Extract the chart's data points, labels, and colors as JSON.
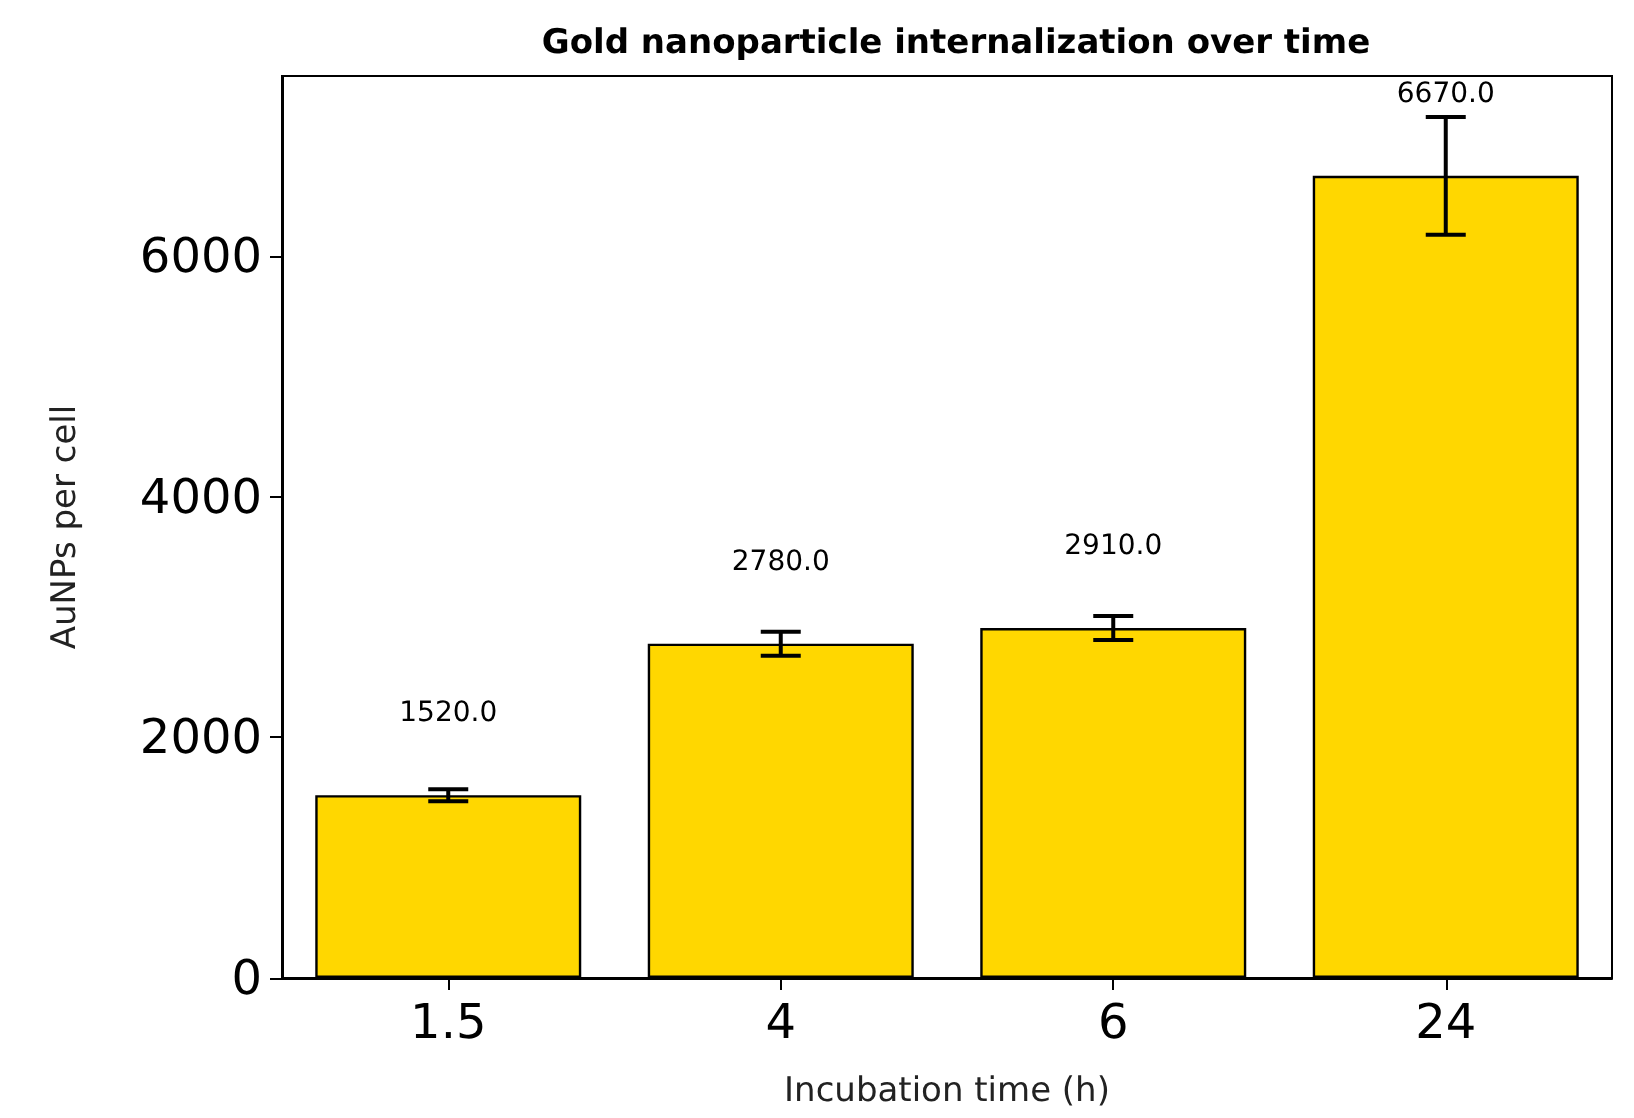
{
  "chart_data": {
    "type": "bar",
    "title": "Gold nanoparticle internalization over time",
    "xlabel": "Incubation time (h)",
    "ylabel": "AuNPs per cell",
    "categories": [
      "1.5",
      "4",
      "6",
      "24"
    ],
    "values": [
      1520,
      2780,
      2910,
      6670
    ],
    "errors": [
      50,
      100,
      100,
      490
    ],
    "value_labels": [
      "1520.0",
      "2780.0",
      "2910.0",
      "6670.0"
    ],
    "color": "#ffd700",
    "ylim": [
      0,
      7500
    ],
    "yticks": [
      0,
      2000,
      4000,
      6000
    ],
    "grid": false
  }
}
